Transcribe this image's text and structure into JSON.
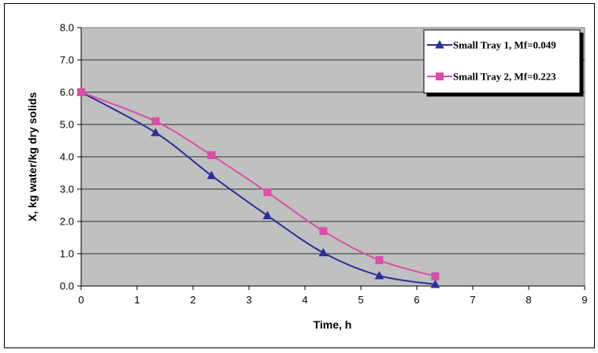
{
  "chart_data": {
    "type": "line",
    "title": "",
    "xlabel": "Time, h",
    "ylabel": "X, kg water/kg dry solids",
    "xlim": [
      0,
      9
    ],
    "ylim": [
      0,
      8
    ],
    "xticks": [
      "0",
      "1",
      "2",
      "3",
      "4",
      "5",
      "6",
      "7",
      "8",
      "9"
    ],
    "yticks": [
      "0.0",
      "1.0",
      "2.0",
      "3.0",
      "4.0",
      "5.0",
      "6.0",
      "7.0",
      "8.0"
    ],
    "grid": true,
    "legend_position": "top-right",
    "series": [
      {
        "name": "Small Tray 1, Mf=0.049",
        "color": "#2b2f9c",
        "marker": "triangle",
        "x": [
          0,
          1.33,
          2.33,
          3.33,
          4.33,
          5.33,
          6.33
        ],
        "y": [
          6.0,
          4.75,
          3.42,
          2.18,
          1.03,
          0.32,
          0.05
        ]
      },
      {
        "name": "Small Tray 2, Mf=0.223",
        "color": "#d84ea8",
        "marker": "square",
        "x": [
          0,
          1.33,
          2.33,
          3.33,
          4.33,
          5.33,
          6.33
        ],
        "y": [
          6.0,
          5.1,
          4.05,
          2.9,
          1.7,
          0.8,
          0.3
        ]
      }
    ]
  }
}
